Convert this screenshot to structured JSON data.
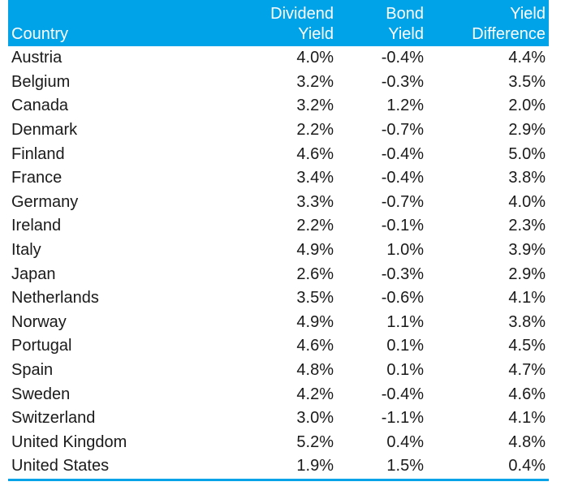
{
  "table": {
    "headers": {
      "country": "Country",
      "dividend_line1": "Dividend",
      "dividend_line2": "Yield",
      "bond_line1": "Bond",
      "bond_line2": "Yield",
      "diff_line1": "Yield",
      "diff_line2": "Difference"
    },
    "rows": [
      {
        "country": "Austria",
        "dividend": "4.0%",
        "bond": "-0.4%",
        "diff": "4.4%"
      },
      {
        "country": "Belgium",
        "dividend": "3.2%",
        "bond": "-0.3%",
        "diff": "3.5%"
      },
      {
        "country": "Canada",
        "dividend": "3.2%",
        "bond": "1.2%",
        "diff": "2.0%"
      },
      {
        "country": "Denmark",
        "dividend": "2.2%",
        "bond": "-0.7%",
        "diff": "2.9%"
      },
      {
        "country": "Finland",
        "dividend": "4.6%",
        "bond": "-0.4%",
        "diff": "5.0%"
      },
      {
        "country": "France",
        "dividend": "3.4%",
        "bond": "-0.4%",
        "diff": "3.8%"
      },
      {
        "country": "Germany",
        "dividend": "3.3%",
        "bond": "-0.7%",
        "diff": "4.0%"
      },
      {
        "country": "Ireland",
        "dividend": "2.2%",
        "bond": "-0.1%",
        "diff": "2.3%"
      },
      {
        "country": "Italy",
        "dividend": "4.9%",
        "bond": "1.0%",
        "diff": "3.9%"
      },
      {
        "country": "Japan",
        "dividend": "2.6%",
        "bond": "-0.3%",
        "diff": "2.9%"
      },
      {
        "country": "Netherlands",
        "dividend": "3.5%",
        "bond": "-0.6%",
        "diff": "4.1%"
      },
      {
        "country": "Norway",
        "dividend": "4.9%",
        "bond": "1.1%",
        "diff": "3.8%"
      },
      {
        "country": "Portugal",
        "dividend": "4.6%",
        "bond": "0.1%",
        "diff": "4.5%"
      },
      {
        "country": "Spain",
        "dividend": "4.8%",
        "bond": "0.1%",
        "diff": "4.7%"
      },
      {
        "country": "Sweden",
        "dividend": "4.2%",
        "bond": "-0.4%",
        "diff": "4.6%"
      },
      {
        "country": "Switzerland",
        "dividend": "3.0%",
        "bond": "-1.1%",
        "diff": "4.1%"
      },
      {
        "country": "United Kingdom",
        "dividend": "5.2%",
        "bond": "0.4%",
        "diff": "4.8%"
      },
      {
        "country": "United States",
        "dividend": "1.9%",
        "bond": "1.5%",
        "diff": "0.4%"
      }
    ]
  },
  "colors": {
    "header_bg": "#00a3e8",
    "header_text": "#ffffff",
    "body_text": "#1a1a1a"
  }
}
